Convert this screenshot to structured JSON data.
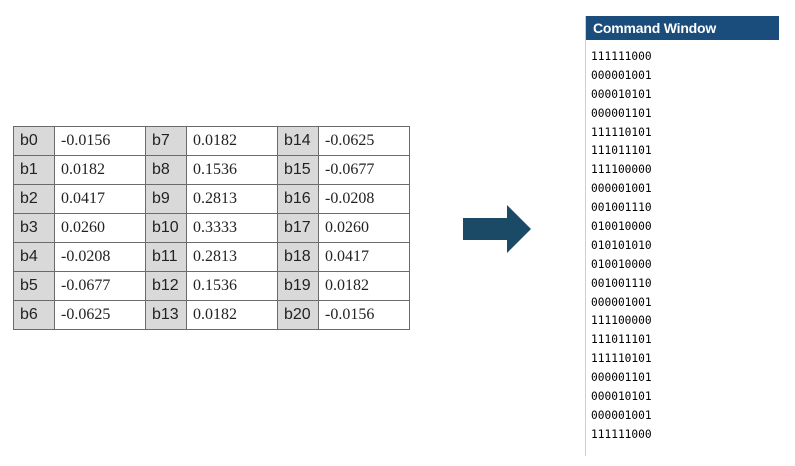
{
  "coefficients": [
    [
      {
        "label": "b0",
        "value": "-0.0156"
      },
      {
        "label": "b7",
        "value": "0.0182"
      },
      {
        "label": "b14",
        "value": "-0.0625"
      }
    ],
    [
      {
        "label": "b1",
        "value": "0.0182"
      },
      {
        "label": "b8",
        "value": "0.1536"
      },
      {
        "label": "b15",
        "value": "-0.0677"
      }
    ],
    [
      {
        "label": "b2",
        "value": "0.0417"
      },
      {
        "label": "b9",
        "value": "0.2813"
      },
      {
        "label": "b16",
        "value": "-0.0208"
      }
    ],
    [
      {
        "label": "b3",
        "value": "0.0260"
      },
      {
        "label": "b10",
        "value": "0.3333"
      },
      {
        "label": "b17",
        "value": "0.0260"
      }
    ],
    [
      {
        "label": "b4",
        "value": "-0.0208"
      },
      {
        "label": "b11",
        "value": "0.2813"
      },
      {
        "label": "b18",
        "value": "0.0417"
      }
    ],
    [
      {
        "label": "b5",
        "value": "-0.0677"
      },
      {
        "label": "b12",
        "value": "0.1536"
      },
      {
        "label": "b19",
        "value": "0.0182"
      }
    ],
    [
      {
        "label": "b6",
        "value": "-0.0625"
      },
      {
        "label": "b13",
        "value": "0.0182"
      },
      {
        "label": "b20",
        "value": "-0.0156"
      }
    ]
  ],
  "arrow": {
    "icon": "right-arrow-icon",
    "color": "#1b4a66"
  },
  "command_window": {
    "title": "Command Window",
    "title_bg": "#1a4d7c",
    "lines": [
      "111111000",
      "000001001",
      "000010101",
      "000001101",
      "111110101",
      "111011101",
      "111100000",
      "000001001",
      "001001110",
      "010010000",
      "010101010",
      "010010000",
      "001001110",
      "000001001",
      "111100000",
      "111011101",
      "111110101",
      "000001101",
      "000010101",
      "000001001",
      "111111000"
    ]
  }
}
